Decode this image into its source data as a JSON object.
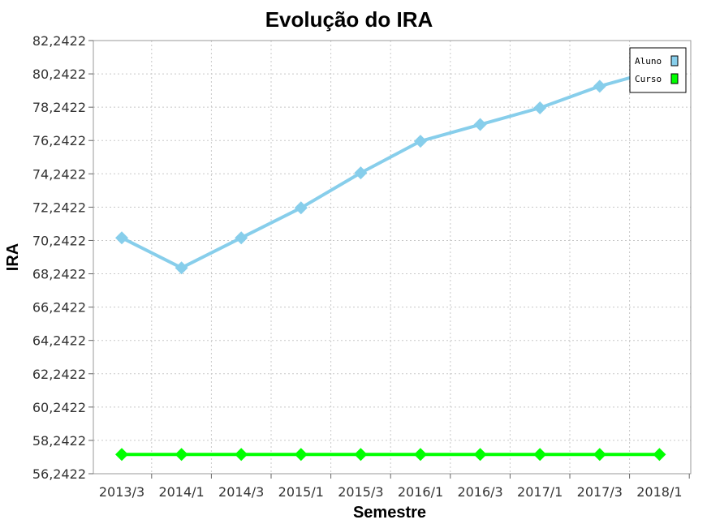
{
  "chart_data": {
    "type": "line",
    "title": "Evolução do IRA",
    "xlabel": "Semestre",
    "ylabel": "IRA",
    "categories": [
      "2013/3",
      "2014/1",
      "2014/3",
      "2015/1",
      "2015/3",
      "2016/1",
      "2016/3",
      "2017/1",
      "2017/3",
      "2018/1"
    ],
    "yticks": [
      "56,2422",
      "58,2422",
      "60,2422",
      "62,2422",
      "64,2422",
      "66,2422",
      "68,2422",
      "70,2422",
      "72,2422",
      "74,2422",
      "76,2422",
      "78,2422",
      "80,2422",
      "82,2422"
    ],
    "ylim": [
      56.2422,
      82.2422
    ],
    "grid": true,
    "legend_position": "top-right",
    "series": [
      {
        "name": "Aluno",
        "color": "#87ceeb",
        "values": [
          70.4,
          68.6,
          70.4,
          72.2,
          74.3,
          76.2,
          77.2,
          78.2,
          79.5,
          80.5
        ]
      },
      {
        "name": "Curso",
        "color": "#00ff00",
        "values": [
          57.4,
          57.4,
          57.4,
          57.4,
          57.4,
          57.4,
          57.4,
          57.4,
          57.4,
          57.4
        ]
      }
    ]
  }
}
